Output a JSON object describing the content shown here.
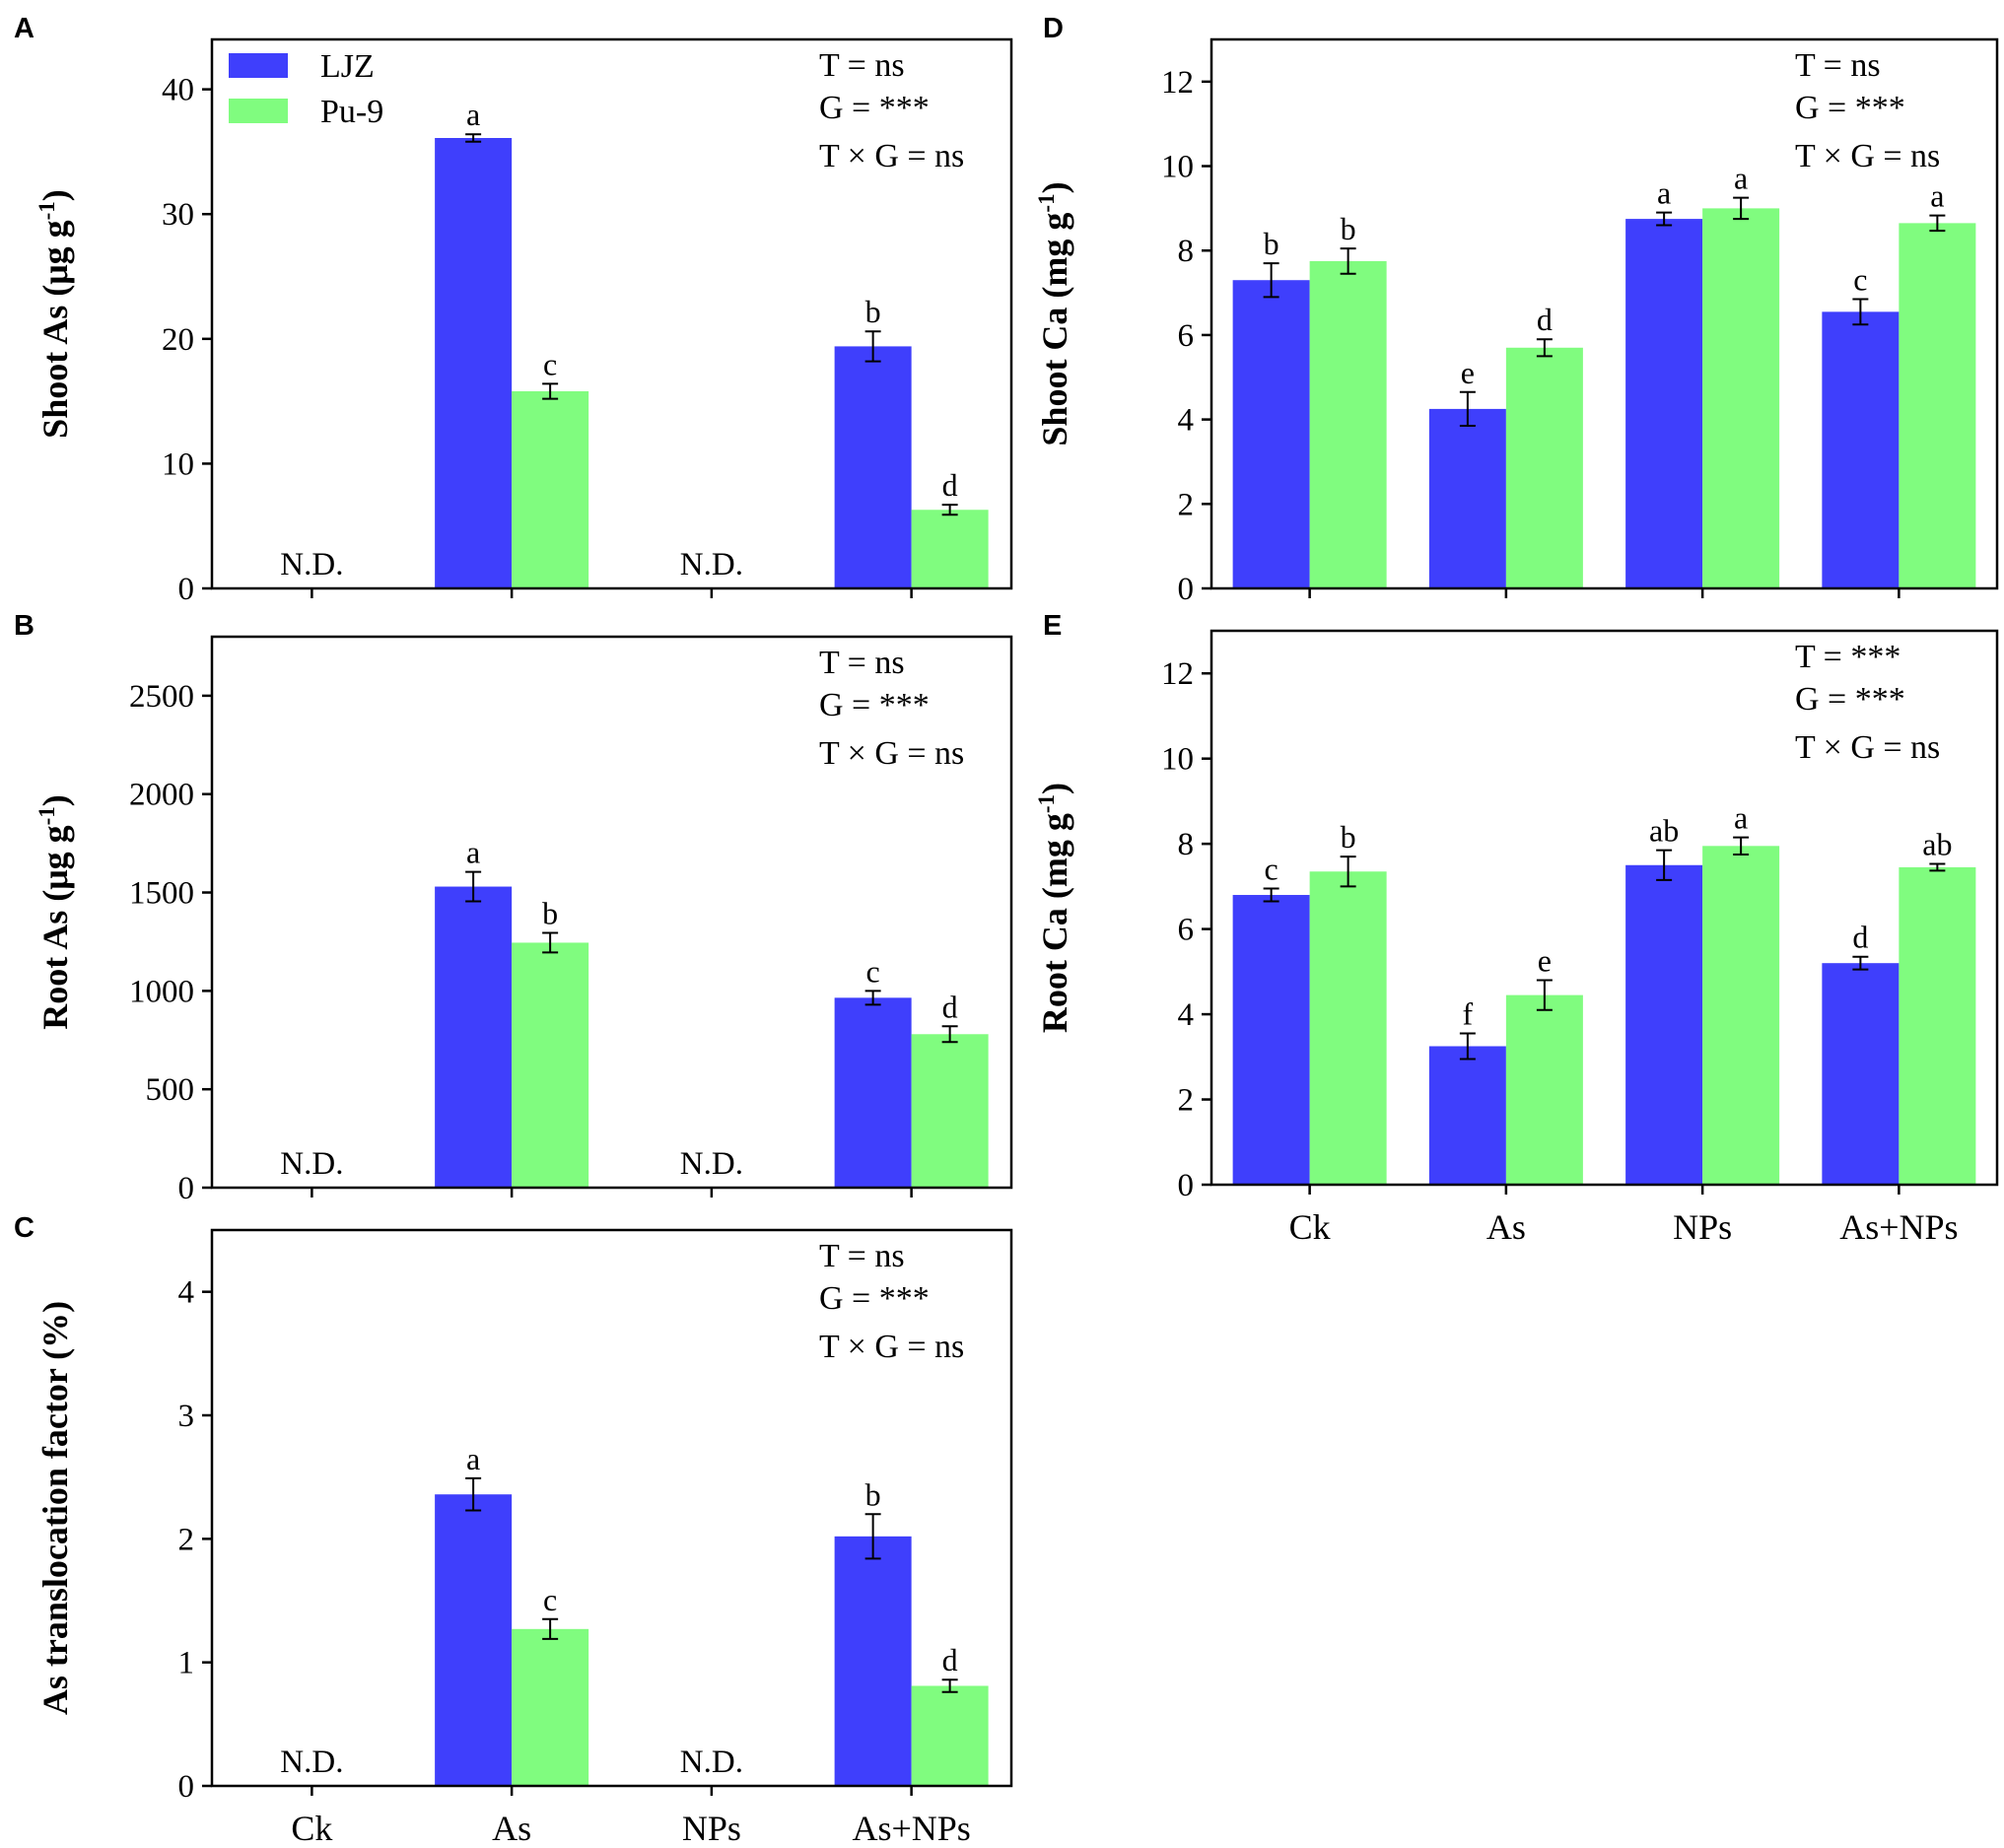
{
  "legend": [
    {
      "name": "LJZ",
      "color": "#3f3ffc"
    },
    {
      "name": "Pu-9",
      "color": "#80fc7f"
    }
  ],
  "categories": [
    "Ck",
    "As",
    "NPs",
    "As+NPs"
  ],
  "nd_label": "N.D.",
  "chart_data": [
    {
      "id": "A",
      "panel": "A",
      "type": "bar",
      "ylabel": "Shoot As  (μg g",
      "ylabel_sup": "-1",
      "ylabel_end": ")",
      "ylim": [
        0,
        44
      ],
      "yticks": [
        0,
        10,
        20,
        30,
        40
      ],
      "stats": [
        "T = ns",
        "G = ***",
        "T × G = ns"
      ],
      "show_legend": true,
      "show_xlabels": false,
      "categories": [
        "Ck",
        "As",
        "NPs",
        "As+NPs"
      ],
      "series": [
        {
          "name": "LJZ",
          "values": [
            null,
            36.1,
            null,
            19.4
          ],
          "errors": [
            0,
            0.3,
            0,
            1.2
          ],
          "letters": [
            "",
            "a",
            "",
            "b"
          ]
        },
        {
          "name": "Pu-9",
          "values": [
            null,
            15.8,
            null,
            6.3
          ],
          "errors": [
            0,
            0.6,
            0,
            0.4
          ],
          "letters": [
            "",
            "c",
            "",
            "d"
          ]
        }
      ],
      "nd": [
        true,
        false,
        true,
        false
      ]
    },
    {
      "id": "B",
      "panel": "B",
      "type": "bar",
      "ylabel": "Root As  (μg g",
      "ylabel_sup": "-1",
      "ylabel_end": ")",
      "ylim": [
        0,
        2800
      ],
      "yticks": [
        0,
        500,
        1000,
        1500,
        2000,
        2500
      ],
      "stats": [
        "T = ns",
        "G = ***",
        "T × G = ns"
      ],
      "show_legend": false,
      "show_xlabels": false,
      "categories": [
        "Ck",
        "As",
        "NPs",
        "As+NPs"
      ],
      "series": [
        {
          "name": "LJZ",
          "values": [
            null,
            1530,
            null,
            965
          ],
          "errors": [
            0,
            75,
            0,
            35
          ],
          "letters": [
            "",
            "a",
            "",
            "c"
          ]
        },
        {
          "name": "Pu-9",
          "values": [
            null,
            1245,
            null,
            780
          ],
          "errors": [
            0,
            50,
            0,
            40
          ],
          "letters": [
            "",
            "b",
            "",
            "d"
          ]
        }
      ],
      "nd": [
        true,
        false,
        true,
        false
      ]
    },
    {
      "id": "C",
      "panel": "C",
      "type": "bar",
      "ylabel": "As translocation  factor (%)",
      "ylabel_sup": "",
      "ylabel_end": "",
      "ylim": [
        0,
        4.5
      ],
      "yticks": [
        0,
        1,
        2,
        3,
        4
      ],
      "stats": [
        "T = ns",
        "G = ***",
        "T × G = ns"
      ],
      "show_legend": false,
      "show_xlabels": true,
      "categories": [
        "Ck",
        "As",
        "NPs",
        "As+NPs"
      ],
      "series": [
        {
          "name": "LJZ",
          "values": [
            null,
            2.36,
            null,
            2.02
          ],
          "errors": [
            0,
            0.13,
            0,
            0.18
          ],
          "letters": [
            "",
            "a",
            "",
            "b"
          ]
        },
        {
          "name": "Pu-9",
          "values": [
            null,
            1.27,
            null,
            0.81
          ],
          "errors": [
            0,
            0.08,
            0,
            0.05
          ],
          "letters": [
            "",
            "c",
            "",
            "d"
          ]
        }
      ],
      "nd": [
        true,
        false,
        true,
        false
      ]
    },
    {
      "id": "D",
      "panel": "D",
      "type": "bar",
      "ylabel": "Shoot Ca (mg g",
      "ylabel_sup": "-1",
      "ylabel_end": ")",
      "ylim": [
        0,
        13
      ],
      "yticks": [
        0,
        2,
        4,
        6,
        8,
        10,
        12
      ],
      "stats": [
        "T = ns",
        "G = ***",
        "T × G = ns"
      ],
      "show_legend": false,
      "show_xlabels": false,
      "categories": [
        "Ck",
        "As",
        "NPs",
        "As+NPs"
      ],
      "series": [
        {
          "name": "LJZ",
          "values": [
            7.3,
            4.25,
            8.75,
            6.55
          ],
          "errors": [
            0.4,
            0.4,
            0.15,
            0.3
          ],
          "letters": [
            "b",
            "e",
            "a",
            "c"
          ]
        },
        {
          "name": "Pu-9",
          "values": [
            7.75,
            5.7,
            9.0,
            8.65
          ],
          "errors": [
            0.3,
            0.2,
            0.25,
            0.18
          ],
          "letters": [
            "b",
            "d",
            "a",
            "a"
          ]
        }
      ],
      "nd": [
        false,
        false,
        false,
        false
      ]
    },
    {
      "id": "E",
      "panel": "E",
      "type": "bar",
      "ylabel": "Root Ca (mg g",
      "ylabel_sup": "-1",
      "ylabel_end": ")",
      "ylim": [
        0,
        13
      ],
      "yticks": [
        0,
        2,
        4,
        6,
        8,
        10,
        12
      ],
      "stats": [
        "T = ***",
        "G = ***",
        "T × G = ns"
      ],
      "show_legend": false,
      "show_xlabels": true,
      "categories": [
        "Ck",
        "As",
        "NPs",
        "As+NPs"
      ],
      "series": [
        {
          "name": "LJZ",
          "values": [
            6.8,
            3.25,
            7.5,
            5.2
          ],
          "errors": [
            0.15,
            0.3,
            0.35,
            0.15
          ],
          "letters": [
            "c",
            "f",
            "ab",
            "d"
          ]
        },
        {
          "name": "Pu-9",
          "values": [
            7.35,
            4.45,
            7.95,
            7.45
          ],
          "errors": [
            0.35,
            0.35,
            0.2,
            0.08
          ],
          "letters": [
            "b",
            "e",
            "a",
            "ab"
          ]
        }
      ],
      "nd": [
        false,
        false,
        false,
        false
      ]
    }
  ]
}
